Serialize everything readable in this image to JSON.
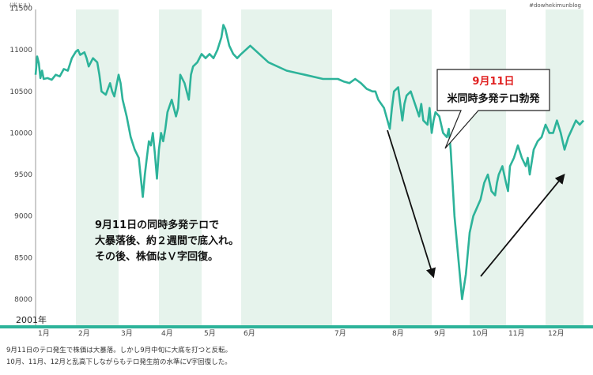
{
  "chart_data": {
    "type": "line",
    "ylabel": "(米ドル)",
    "credit": "#dowhekimunblog",
    "ylim": [
      7800,
      11600
    ],
    "yticks": [
      8000,
      8500,
      9000,
      9500,
      10000,
      10500,
      11000,
      11500
    ],
    "year_label": "2001年",
    "month_labels": [
      "1月",
      "2月",
      "3月",
      "4月",
      "5月",
      "6月",
      "7月",
      "8月",
      "9月",
      "10月",
      "11月",
      "12月"
    ],
    "line_color": "#2db39a",
    "band_color": "#e6f3ec",
    "series": [
      {
        "segments": [
          {
            "x": [
              1.0,
              1.04,
              1.08,
              1.12,
              1.16,
              1.2,
              1.3,
              1.4,
              1.5,
              1.6,
              1.7,
              1.8,
              1.9,
              2.0,
              2.05,
              2.1,
              2.2,
              2.25,
              2.3,
              2.4,
              2.5,
              2.55,
              2.6,
              2.7,
              2.8,
              2.85,
              2.9,
              3.0,
              3.05,
              3.1,
              3.2,
              3.3,
              3.4,
              3.5,
              3.6,
              3.65,
              3.7,
              3.75,
              3.8,
              3.85,
              3.9,
              3.95,
              4.0,
              4.05,
              4.1,
              4.15,
              4.2,
              4.3,
              4.4,
              4.45,
              4.5,
              4.6,
              4.7,
              4.75,
              4.8,
              4.9,
              5.0,
              5.1,
              5.2,
              5.3,
              5.4,
              5.5,
              5.55,
              5.6,
              5.7,
              5.75,
              5.8,
              5.9,
              6.0,
              6.1,
              6.2,
              6.3,
              6.5,
              6.7,
              6.9,
              7.0
            ],
            "y": [
              10700,
              10920,
              10840,
              10660,
              10750,
              10650,
              10660,
              10640,
              10700,
              10680,
              10770,
              10750,
              10900,
              10980,
              11000,
              10940,
              10970,
              10900,
              10800,
              10900,
              10850,
              10700,
              10500,
              10460,
              10600,
              10500,
              10440,
              10700,
              10600,
              10400,
              10200,
              9950,
              9800,
              9700,
              9230,
              9500,
              9700,
              9900,
              9850,
              10000,
              9750,
              9450,
              9800,
              10000,
              9900,
              10050,
              10250,
              10400,
              10200,
              10300,
              10700,
              10600,
              10400,
              10700,
              10800,
              10850,
              10950,
              10900,
              10950,
              10900,
              11000,
              11150,
              11300,
              11250,
              11050,
              11000,
              10950,
              10900,
              10950,
              11050,
              10950,
              10850,
              10750,
              10700,
              10650,
              10650
            ]
          },
          {
            "x": [
              7.0,
              7.1,
              7.2,
              7.3,
              7.4,
              7.5,
              7.6,
              7.7,
              7.75,
              7.8,
              7.9,
              8.0,
              8.05,
              8.1,
              8.2,
              8.3,
              8.35,
              8.4,
              8.5,
              8.6,
              8.7,
              8.75,
              8.8,
              8.9,
              8.95,
              9.0,
              9.05,
              9.1,
              9.2,
              9.3,
              9.4,
              9.45,
              9.5,
              9.55,
              9.6,
              9.7,
              9.8,
              9.9,
              10.0,
              10.1,
              10.2,
              10.3,
              10.35,
              10.4,
              10.5,
              10.6,
              10.7,
              10.75,
              10.8,
              10.9,
              11.0,
              11.05,
              11.1,
              11.2,
              11.3,
              11.4,
              11.5,
              11.55,
              11.6,
              11.7,
              11.8,
              11.9,
              12.0,
              12.1,
              12.2,
              12.3,
              12.4,
              12.5,
              12.6,
              12.7,
              12.8,
              12.9,
              13.0
            ],
            "y": [
              10650,
              10650,
              10620,
              10600,
              10650,
              10600,
              10530,
              10500,
              10500,
              10400,
              10300,
              10050,
              10300,
              10500,
              10550,
              10150,
              10350,
              10450,
              10500,
              10350,
              10200,
              10350,
              10150,
              10100,
              10300,
              10000,
              10150,
              10250,
              10200,
              10000,
              9950,
              10050,
              9800,
              9400,
              9000,
              8500,
              8000,
              8300,
              8800,
              9000,
              9100,
              9200,
              9300,
              9400,
              9500,
              9300,
              9250,
              9400,
              9500,
              9600,
              9400,
              9300,
              9600,
              9700,
              9850,
              9700,
              9600,
              9700,
              9500,
              9800,
              9900,
              9950,
              10100,
              10000,
              10000,
              10150,
              10000,
              9800,
              9950,
              10050,
              10150,
              10100,
              10150
            ]
          }
        ]
      }
    ],
    "annotations": [
      {
        "lines": [
          "9月11日の同時多発テロで",
          "大暴落後、約２週間で底入れ。",
          "その後、株価はＶ字回復。"
        ]
      }
    ],
    "callout": {
      "title": "9月11日",
      "body": "米同時多発テロ勃発"
    },
    "caption": [
      "9月11日のテロ発生で株価は大暴落。しかし9月中旬に大底を打つと反転。",
      "10月、11月、12月と乱高下しながらもテロ発生前の水準にV字回復した。"
    ]
  }
}
